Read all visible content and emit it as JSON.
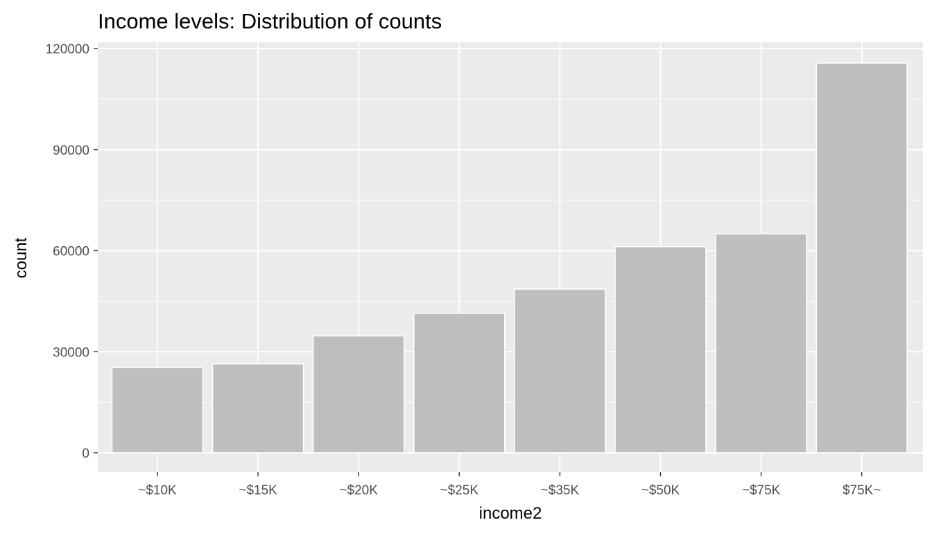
{
  "chart_data": {
    "type": "bar",
    "title": "Income levels: Distribution of counts",
    "xlabel": "income2",
    "ylabel": "count",
    "categories": [
      "~$10K",
      "~$15K",
      "~$20K",
      "~$25K",
      "~$35K",
      "~$50K",
      "~$75K",
      "$75K~"
    ],
    "values": [
      25300,
      26400,
      34700,
      41400,
      48600,
      61200,
      65000,
      115700
    ],
    "ylim": [
      0,
      120000
    ],
    "yticks": [
      0,
      30000,
      60000,
      90000,
      120000
    ],
    "ytick_labels": [
      "0",
      "30000",
      "60000",
      "90000",
      "120000"
    ],
    "grid": true,
    "legend": "none",
    "colors": {
      "bar_fill": "#bebebe",
      "bar_outline": "#ffffff",
      "panel_background": "#ebebeb",
      "grid_line": "#ffffff"
    }
  }
}
